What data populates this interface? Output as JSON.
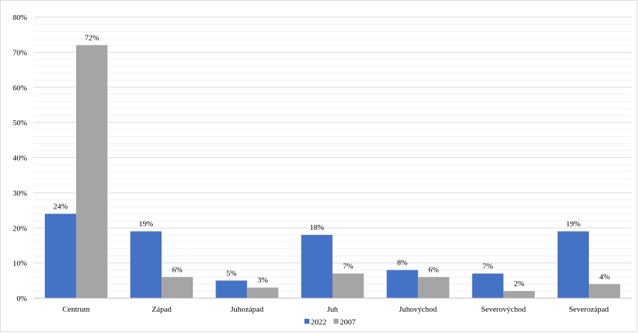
{
  "chart_data": {
    "type": "bar",
    "categories": [
      "Centrum",
      "Západ",
      "Juhozápad",
      "Juh",
      "Juhovýchod",
      "Severovýchod",
      "Severozápad"
    ],
    "series": [
      {
        "name": "2022",
        "values": [
          24,
          19,
          5,
          18,
          8,
          7,
          19
        ],
        "labels": [
          "24%",
          "19%",
          "5%",
          "18%",
          "8%",
          "7%",
          "19%"
        ],
        "color": "#4472C4"
      },
      {
        "name": "2007",
        "values": [
          72,
          6,
          3,
          7,
          6,
          2,
          4
        ],
        "labels": [
          "72%",
          "6%",
          "3%",
          "7%",
          "6%",
          "2%",
          "4%"
        ],
        "color": "#A5A5A5"
      }
    ],
    "y_ticks": [
      "0%",
      "10%",
      "20%",
      "30%",
      "40%",
      "50%",
      "60%",
      "70%",
      "80%"
    ],
    "ylim": [
      0,
      80
    ],
    "grid": true,
    "legend_position": "bottom-center"
  }
}
